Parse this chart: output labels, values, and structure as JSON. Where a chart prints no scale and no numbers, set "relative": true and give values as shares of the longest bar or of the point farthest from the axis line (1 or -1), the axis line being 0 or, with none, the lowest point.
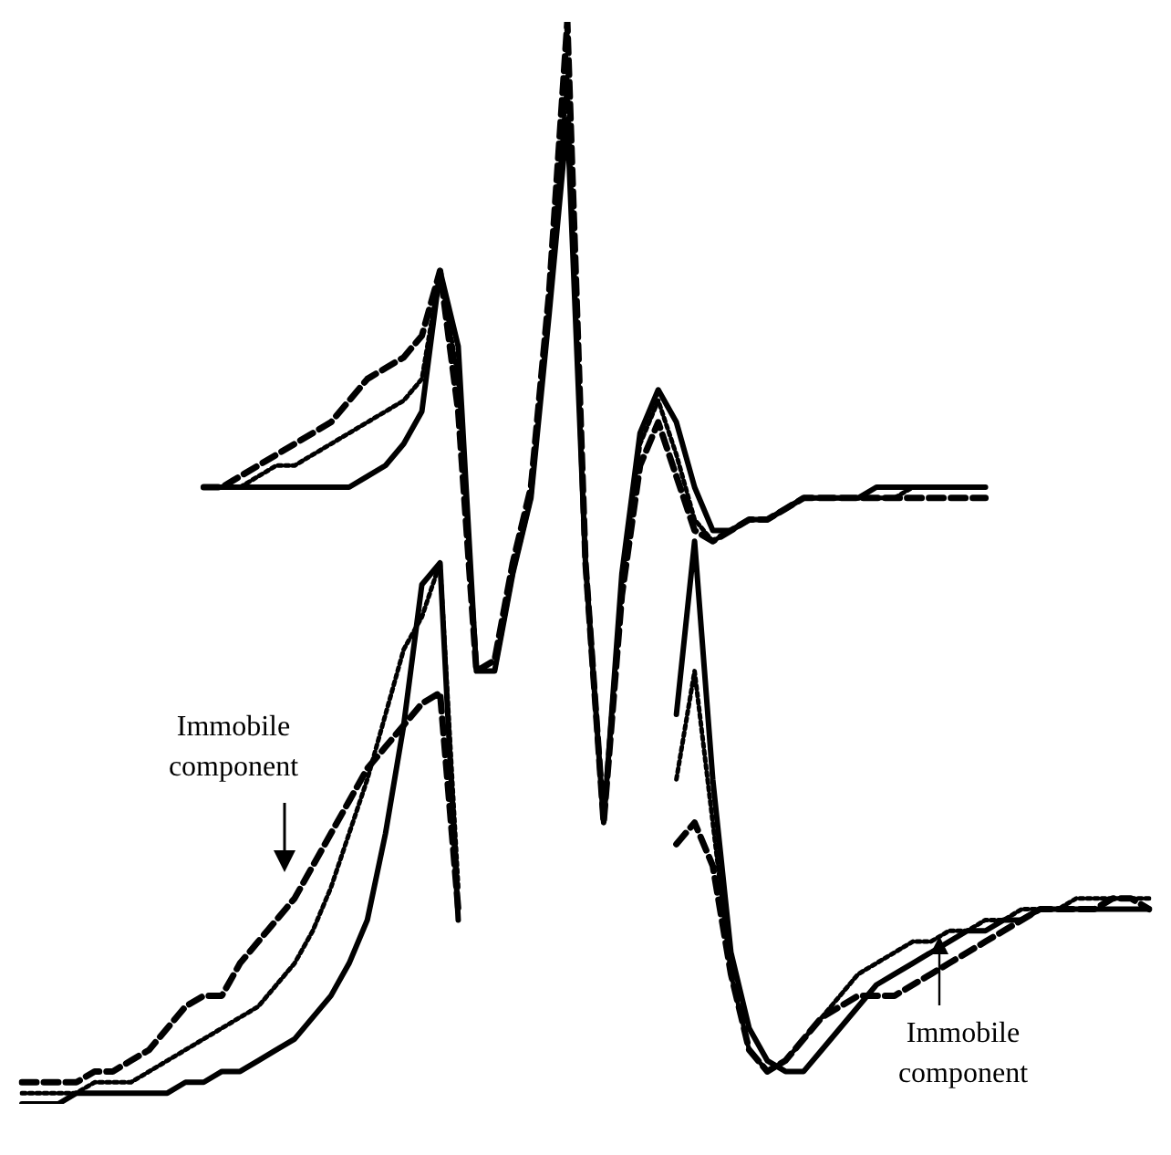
{
  "chart_data": {
    "type": "line",
    "relative": true,
    "legend": false,
    "marker": "none",
    "categories": [
      null,
      null,
      null,
      null,
      null,
      null,
      null,
      null,
      null,
      null,
      null,
      null,
      null,
      null,
      null,
      null,
      null,
      null,
      null,
      null,
      null,
      null,
      null,
      null,
      null,
      null,
      null,
      null,
      null,
      null,
      null,
      null,
      null,
      null,
      null,
      null,
      null,
      null,
      null,
      null,
      null,
      null,
      null,
      null,
      null,
      null,
      null,
      null,
      null,
      null,
      null,
      null,
      null,
      null,
      null,
      null,
      null,
      null,
      null,
      null,
      null,
      null,
      null
    ],
    "series": [
      {
        "color": "#000000",
        "line_style": "solid",
        "values": [
          null,
          null,
          null,
          null,
          null,
          null,
          null,
          null,
          null,
          null,
          0.57,
          0.57,
          0.57,
          0.57,
          0.57,
          0.57,
          0.57,
          0.57,
          0.57,
          0.58,
          0.59,
          0.61,
          0.64,
          0.77,
          0.7,
          0.4,
          0.4,
          0.49,
          0.56,
          0.73,
          0.91,
          0.5,
          0.26,
          0.49,
          0.62,
          0.66,
          0.63,
          0.57,
          0.53,
          0.53,
          0.54,
          0.54,
          0.55,
          0.56,
          0.56,
          0.56,
          0.56,
          0.57,
          0.57,
          0.57,
          0.57,
          0.57,
          0.57,
          0.57,
          null,
          null,
          null,
          null,
          null,
          null,
          null,
          null,
          null
        ]
      },
      {
        "color": "#000000",
        "line_style": "dashed",
        "values": [
          null,
          null,
          null,
          null,
          null,
          null,
          null,
          null,
          null,
          null,
          0.57,
          0.57,
          0.58,
          0.59,
          0.6,
          0.61,
          0.62,
          0.63,
          0.65,
          0.67,
          0.68,
          0.69,
          0.71,
          0.77,
          0.64,
          0.4,
          0.41,
          0.5,
          0.57,
          0.75,
          1.0,
          0.5,
          0.26,
          0.47,
          0.59,
          0.63,
          0.58,
          0.53,
          0.52,
          0.53,
          0.54,
          0.54,
          0.55,
          0.56,
          0.56,
          0.56,
          0.56,
          0.56,
          0.56,
          0.56,
          0.56,
          0.56,
          0.56,
          0.56,
          null,
          null,
          null,
          null,
          null,
          null,
          null,
          null,
          null
        ]
      },
      {
        "color": "#000000",
        "line_style": "dotted",
        "values": [
          null,
          null,
          null,
          null,
          null,
          null,
          null,
          null,
          null,
          null,
          0.57,
          0.57,
          0.57,
          0.58,
          0.59,
          0.59,
          0.6,
          0.61,
          0.62,
          0.63,
          0.64,
          0.65,
          0.67,
          0.77,
          0.67,
          0.4,
          0.4,
          0.49,
          0.56,
          0.74,
          0.95,
          0.5,
          0.26,
          0.48,
          0.61,
          0.65,
          0.6,
          0.54,
          0.52,
          0.53,
          0.54,
          0.54,
          0.55,
          0.56,
          0.56,
          0.56,
          0.56,
          0.56,
          0.56,
          0.57,
          0.57,
          0.57,
          0.57,
          0.57,
          null,
          null,
          null,
          null,
          null,
          null,
          null,
          null,
          null
        ]
      },
      {
        "color": "#000000",
        "line_style": "solid",
        "values": [
          0.0,
          0.0,
          0.0,
          0.01,
          0.01,
          0.01,
          0.01,
          0.01,
          0.01,
          0.02,
          0.02,
          0.03,
          0.03,
          0.04,
          0.05,
          0.06,
          0.08,
          0.1,
          0.13,
          0.17,
          0.25,
          0.35,
          0.48,
          0.5,
          0.17,
          null,
          null,
          null,
          null,
          null,
          null,
          null,
          null,
          null,
          null,
          null,
          0.36,
          0.52,
          0.3,
          0.14,
          0.07,
          0.04,
          0.03,
          0.03,
          0.05,
          0.07,
          0.09,
          0.11,
          0.12,
          0.13,
          0.14,
          0.15,
          0.16,
          0.16,
          0.17,
          0.17,
          0.18,
          0.18,
          0.18,
          0.18,
          0.18,
          0.18,
          0.18
        ]
      },
      {
        "color": "#000000",
        "line_style": "dashed",
        "values": [
          0.02,
          0.02,
          0.02,
          0.02,
          0.03,
          0.03,
          0.04,
          0.05,
          0.07,
          0.09,
          0.1,
          0.1,
          0.13,
          0.15,
          0.17,
          0.19,
          0.22,
          0.25,
          0.28,
          0.31,
          0.33,
          0.35,
          0.37,
          0.38,
          0.18,
          null,
          null,
          null,
          null,
          null,
          null,
          null,
          null,
          null,
          null,
          null,
          0.24,
          0.26,
          0.22,
          0.12,
          0.05,
          0.03,
          0.04,
          0.06,
          0.08,
          0.09,
          0.1,
          0.1,
          0.1,
          0.11,
          0.12,
          0.13,
          0.14,
          0.15,
          0.16,
          0.17,
          0.18,
          0.18,
          0.18,
          0.18,
          0.19,
          0.19,
          0.18
        ]
      },
      {
        "color": "#000000",
        "line_style": "dotted",
        "values": [
          0.01,
          0.01,
          0.01,
          0.01,
          0.02,
          0.02,
          0.02,
          0.03,
          0.04,
          0.05,
          0.06,
          0.07,
          0.08,
          0.09,
          0.11,
          0.13,
          0.16,
          0.2,
          0.25,
          0.3,
          0.36,
          0.42,
          0.45,
          0.5,
          0.2,
          null,
          null,
          null,
          null,
          null,
          null,
          null,
          null,
          null,
          null,
          null,
          0.3,
          0.4,
          0.26,
          0.12,
          0.05,
          0.03,
          0.04,
          0.06,
          0.08,
          0.1,
          0.12,
          0.13,
          0.14,
          0.15,
          0.15,
          0.16,
          0.16,
          0.17,
          0.17,
          0.18,
          0.18,
          0.18,
          0.19,
          0.19,
          0.19,
          0.19,
          0.19
        ]
      }
    ],
    "annotations": [
      "Immobile component",
      "Immobile component"
    ]
  }
}
